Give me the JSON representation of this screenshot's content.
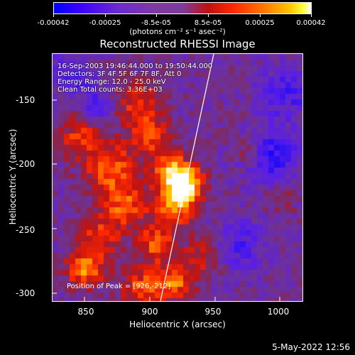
{
  "colorbar": {
    "ticks": [
      "-0.00042",
      "-0.00025",
      "-8.5e-05",
      "8.5e-05",
      "0.00025",
      "0.00042"
    ],
    "units": "(photons cm⁻² s⁻¹ asec⁻²)",
    "colormap": [
      "#0000ff",
      "#5a00ff",
      "#7f3aa0",
      "#c01010",
      "#ff3000",
      "#ff9000",
      "#ffd000",
      "#ffffff"
    ]
  },
  "chart_data": {
    "type": "heatmap",
    "title": "Reconstructed RHESSI Image",
    "xlabel": "Heliocentric X (arcsec)",
    "ylabel": "Heliocentric Y (arcsec)",
    "xlim": [
      825,
      1017
    ],
    "ylim": [
      -305,
      -110
    ],
    "x_ticks": [
      "850",
      "900",
      "950",
      "1000"
    ],
    "y_ticks": [
      "-150",
      "-200",
      "-250",
      "-300"
    ],
    "annotations": {
      "info": [
        "16-Sep-2003 19:46:44.000 to 19:50:44.000",
        "Detectors: 3F 4F 5F 6F 7F 8F, Att 0",
        "Energy Range: 12.0 - 25.0 keV",
        "Clean    Total counts: 3.36E+03"
      ],
      "peak": "Position of Peak = [926,-212]"
    },
    "peak_position": [
      926,
      -212
    ],
    "color_range": [
      -0.00042,
      0.00042
    ]
  },
  "timestamp": "5-May-2022 12:56"
}
